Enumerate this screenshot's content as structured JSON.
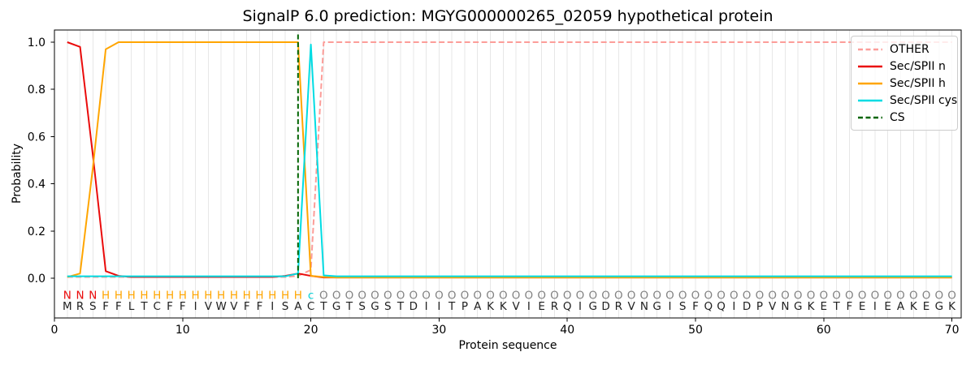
{
  "chart_data": {
    "type": "line",
    "title": "SignalP 6.0 prediction: MGYG000000265_02059 hypothetical protein",
    "xlabel": "Protein sequence",
    "ylabel": "Probability",
    "xlim": [
      0,
      70.7
    ],
    "ylim": [
      0.0,
      1.0
    ],
    "x_ticks": [
      0,
      10,
      20,
      30,
      40,
      50,
      60,
      70
    ],
    "y_ticks": [
      0.0,
      0.2,
      0.4,
      0.6,
      0.8,
      1.0
    ],
    "grid": true,
    "legend_position": "upper right",
    "x_start": 1,
    "series": [
      {
        "name": "OTHER",
        "color": "#fc9d99",
        "style": "dashed",
        "values": [
          0.005,
          0.005,
          0.005,
          0.005,
          0.005,
          0.005,
          0.005,
          0.005,
          0.005,
          0.005,
          0.005,
          0.005,
          0.005,
          0.005,
          0.005,
          0.005,
          0.005,
          0.005,
          0.01,
          0.035,
          1.0,
          1.0,
          1.0,
          1.0,
          1.0,
          1.0,
          1.0,
          1.0,
          1.0,
          1.0,
          1.0,
          1.0,
          1.0,
          1.0,
          1.0,
          1.0,
          1.0,
          1.0,
          1.0,
          1.0,
          1.0,
          1.0,
          1.0,
          1.0,
          1.0,
          1.0,
          1.0,
          1.0,
          1.0,
          1.0,
          1.0,
          1.0,
          1.0,
          1.0,
          1.0,
          1.0,
          1.0,
          1.0,
          1.0,
          1.0,
          1.0,
          1.0,
          1.0,
          1.0,
          1.0,
          1.0,
          1.0,
          1.0,
          1.0,
          1.0
        ]
      },
      {
        "name": "Sec/SPII n",
        "color": "#ea0b0b",
        "style": "solid",
        "values": [
          1.0,
          0.98,
          0.52,
          0.03,
          0.01,
          0.005,
          0.005,
          0.005,
          0.005,
          0.005,
          0.005,
          0.005,
          0.005,
          0.005,
          0.005,
          0.005,
          0.005,
          0.01,
          0.02,
          0.01,
          0.003,
          0.003,
          0.003,
          0.003,
          0.003,
          0.003,
          0.003,
          0.003,
          0.003,
          0.003,
          0.003,
          0.003,
          0.003,
          0.003,
          0.003,
          0.003,
          0.003,
          0.003,
          0.003,
          0.003,
          0.003,
          0.003,
          0.003,
          0.003,
          0.003,
          0.003,
          0.003,
          0.003,
          0.003,
          0.003,
          0.003,
          0.003,
          0.003,
          0.003,
          0.003,
          0.003,
          0.003,
          0.003,
          0.003,
          0.003,
          0.003,
          0.003,
          0.003,
          0.003,
          0.003,
          0.003,
          0.003,
          0.003,
          0.003,
          0.003
        ]
      },
      {
        "name": "Sec/SPII h",
        "color": "#ffa500",
        "style": "solid",
        "values": [
          0.005,
          0.02,
          0.47,
          0.97,
          1.0,
          1.0,
          1.0,
          1.0,
          1.0,
          1.0,
          1.0,
          1.0,
          1.0,
          1.0,
          1.0,
          1.0,
          1.0,
          1.0,
          1.0,
          0.01,
          0.005,
          0.003,
          0.003,
          0.003,
          0.003,
          0.003,
          0.003,
          0.003,
          0.003,
          0.003,
          0.003,
          0.003,
          0.003,
          0.003,
          0.003,
          0.003,
          0.003,
          0.003,
          0.003,
          0.003,
          0.003,
          0.003,
          0.003,
          0.003,
          0.003,
          0.003,
          0.003,
          0.003,
          0.003,
          0.003,
          0.003,
          0.003,
          0.003,
          0.003,
          0.003,
          0.003,
          0.003,
          0.003,
          0.003,
          0.003,
          0.003,
          0.003,
          0.003,
          0.003,
          0.003,
          0.003,
          0.003,
          0.003,
          0.003,
          0.003
        ]
      },
      {
        "name": "Sec/SPII cys",
        "color": "#00dce3",
        "style": "solid",
        "values": [
          0.008,
          0.008,
          0.008,
          0.008,
          0.008,
          0.008,
          0.008,
          0.008,
          0.008,
          0.008,
          0.008,
          0.008,
          0.008,
          0.008,
          0.008,
          0.008,
          0.008,
          0.008,
          0.02,
          0.99,
          0.012,
          0.008,
          0.008,
          0.008,
          0.008,
          0.008,
          0.008,
          0.008,
          0.008,
          0.008,
          0.008,
          0.008,
          0.008,
          0.008,
          0.008,
          0.008,
          0.008,
          0.008,
          0.008,
          0.008,
          0.008,
          0.008,
          0.008,
          0.008,
          0.008,
          0.008,
          0.008,
          0.008,
          0.008,
          0.008,
          0.008,
          0.008,
          0.008,
          0.008,
          0.008,
          0.008,
          0.008,
          0.008,
          0.008,
          0.008,
          0.008,
          0.008,
          0.008,
          0.008,
          0.008,
          0.008,
          0.008,
          0.008,
          0.008,
          0.008
        ]
      }
    ],
    "cs_marker": {
      "name": "CS",
      "color": "#006400",
      "style": "dashed",
      "position": 19
    },
    "sequence": "MRSFFLTCFFIVWVFFISACTGTSGSTDIITPAKKVIERQIGDRVNGISFQQIDPVNGKETFEIEAKEGK",
    "region_labels": "NNNHHHHHHHHHHHHHHHHcOOOOOOOOOOOOOOOOOOOOOOOOOOOOOOOOOOOOOOOOOOOOOOOOOO",
    "region_colors": {
      "N": "#ea0b0b",
      "H": "#ffa500",
      "c": "#00cfd6",
      "O": "#828282"
    },
    "residue_color": "#212121",
    "grid_color": "#e7e7e7",
    "legend_labels": [
      "OTHER",
      "Sec/SPII n",
      "Sec/SPII h",
      "Sec/SPII cys",
      "CS"
    ]
  }
}
